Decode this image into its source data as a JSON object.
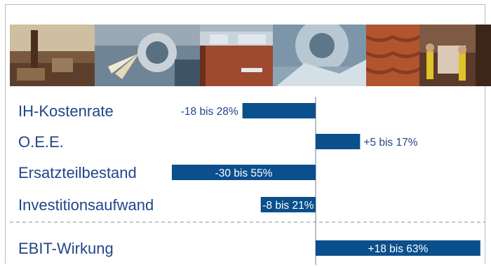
{
  "chart_data": {
    "type": "bar",
    "orientation": "horizontal",
    "title": "",
    "xlabel": "",
    "ylabel": "",
    "categories": [
      "IH-Kostenrate",
      "O.E.E.",
      "Ersatzteilbestand",
      "Investitionsaufwand",
      "EBIT-Wirkung"
    ],
    "values": [
      -28,
      17,
      -55,
      -21,
      63
    ],
    "value_labels": [
      "-18 bis 28%",
      "+5 bis 17%",
      "-30 bis 55%",
      "-8 bis 21%",
      "+18 bis 63%"
    ],
    "label_inside": [
      false,
      false,
      true,
      true,
      true
    ],
    "separator_before": 4,
    "xlim": [
      -55,
      63
    ],
    "grid": false,
    "legend": "none",
    "colors": {
      "bar": "#0b4f8c",
      "label": "#21468b",
      "label_inside": "#ffffff",
      "axis": "#6a7c95",
      "separator": "#8a8f96"
    }
  },
  "header_photos": [
    "industrial-chimney-photo",
    "metal-grinding-sparks-photo",
    "brick-building-photo",
    "saw-blade-photo",
    "roof-tiles-photo",
    "engineers-with-pipe-photo"
  ]
}
